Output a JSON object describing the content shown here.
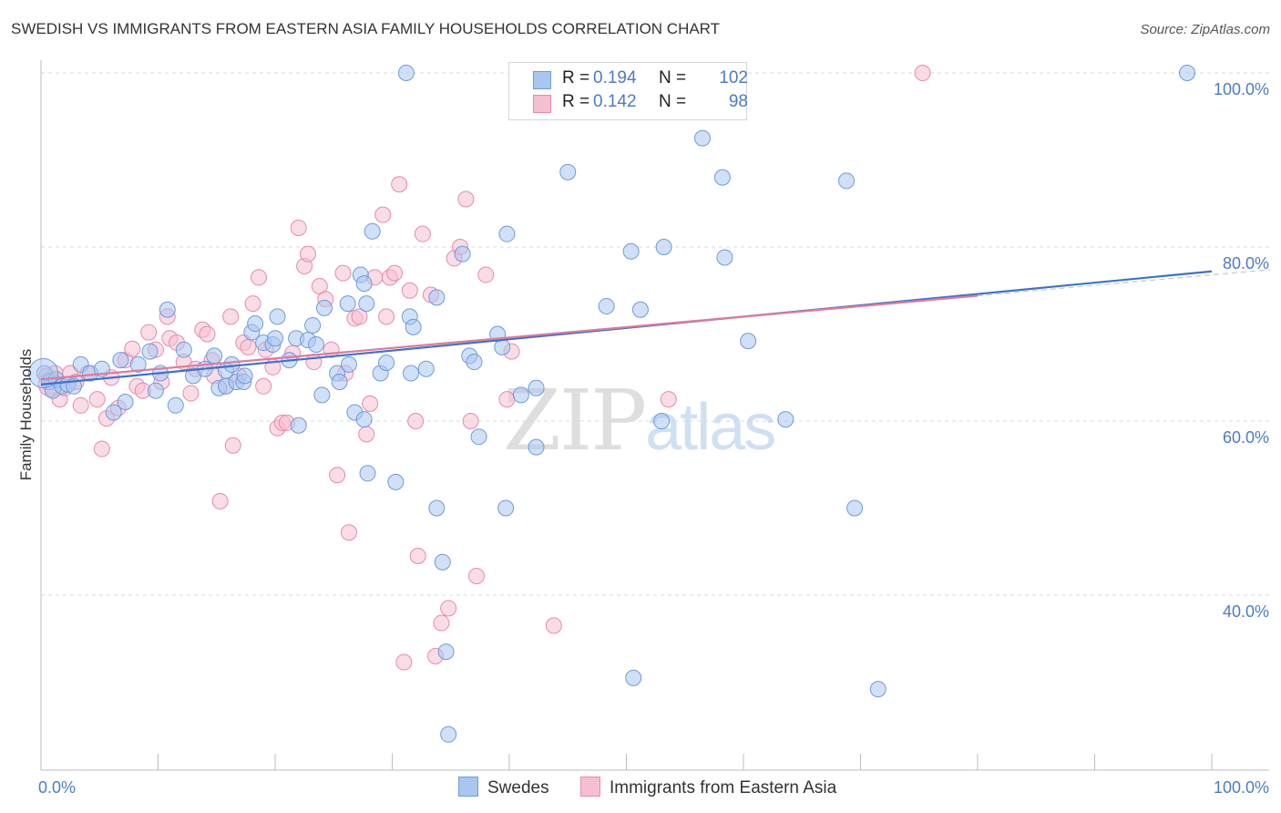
{
  "title": "SWEDISH VS IMMIGRANTS FROM EASTERN ASIA FAMILY HOUSEHOLDS CORRELATION CHART",
  "source": "Source: ZipAtlas.com",
  "watermark": {
    "part1": "ZIP",
    "part2": "atlas"
  },
  "legend": {
    "rows": [
      {
        "r_key": "R =",
        "r_value": "0.194",
        "n_key": "N =",
        "n_value": "102"
      },
      {
        "r_key": "R =",
        "r_value": "0.142",
        "n_key": "N =",
        "n_value": "98"
      }
    ]
  },
  "bottom_legend": {
    "swedes": "Swedes",
    "immigrants": "Immigrants from Eastern Asia"
  },
  "colors": {
    "blue_fill": "#a9c6ee",
    "blue_stroke": "#6d9be0",
    "blue_line": "#3b73cc",
    "pink_fill": "#f6bfd1",
    "pink_stroke": "#e88aa8",
    "pink_line": "#e07a9c",
    "grid": "#d9d9d9",
    "tick_text": "#4a7cc9"
  },
  "chart_data": {
    "type": "scatter",
    "title": "SWEDISH VS IMMIGRANTS FROM EASTERN ASIA FAMILY HOUSEHOLDS CORRELATION CHART",
    "xlabel": "",
    "ylabel": "Family Households",
    "xlim": [
      0,
      100
    ],
    "ylim": [
      20,
      102
    ],
    "x_tick_labels": [
      "0.0%",
      "100.0%"
    ],
    "y_ticks": [
      40,
      60,
      80,
      100
    ],
    "y_tick_labels": [
      "40.0%",
      "60.0%",
      "80.0%",
      "100.0%"
    ],
    "grid": true,
    "legend_position": "top-center",
    "series": [
      {
        "name": "Swedes",
        "R": 0.194,
        "N": 102,
        "trend": {
          "x": [
            0,
            100
          ],
          "y": [
            64.2,
            77.2
          ]
        },
        "points": [
          [
            0.3,
            65.5
          ],
          [
            0.7,
            64.5
          ],
          [
            1,
            63.5
          ],
          [
            1.3,
            64.8
          ],
          [
            1.8,
            64
          ],
          [
            2.3,
            64.2
          ],
          [
            2.8,
            64
          ],
          [
            3.4,
            66.5
          ],
          [
            4.2,
            65.5
          ],
          [
            5.2,
            66
          ],
          [
            6.2,
            61
          ],
          [
            6.8,
            67
          ],
          [
            7.2,
            62.2
          ],
          [
            8.3,
            66.5
          ],
          [
            9.3,
            68
          ],
          [
            9.8,
            63.5
          ],
          [
            10.2,
            65.5
          ],
          [
            10.8,
            72.8
          ],
          [
            11.5,
            61.8
          ],
          [
            12.2,
            68.2
          ],
          [
            13,
            65.2
          ],
          [
            14,
            66
          ],
          [
            14.8,
            67.5
          ],
          [
            15.2,
            63.8
          ],
          [
            15.8,
            64
          ],
          [
            15.8,
            65.8
          ],
          [
            16.3,
            66.5
          ],
          [
            16.7,
            64.5
          ],
          [
            17.3,
            64.5
          ],
          [
            17.4,
            65.2
          ],
          [
            18,
            70.2
          ],
          [
            18.3,
            71.2
          ],
          [
            19,
            69
          ],
          [
            19.8,
            68.8
          ],
          [
            20,
            69.5
          ],
          [
            20.2,
            72
          ],
          [
            21.2,
            67
          ],
          [
            21.8,
            69.5
          ],
          [
            22,
            59.5
          ],
          [
            22.8,
            69.3
          ],
          [
            23.2,
            71
          ],
          [
            23.5,
            68.8
          ],
          [
            24,
            63
          ],
          [
            24.2,
            73
          ],
          [
            25.3,
            65.5
          ],
          [
            25.5,
            64.5
          ],
          [
            26.2,
            73.5
          ],
          [
            26.3,
            66.5
          ],
          [
            26.8,
            61
          ],
          [
            27.3,
            76.8
          ],
          [
            27.6,
            75.8
          ],
          [
            27.8,
            73.5
          ],
          [
            27.6,
            60.2
          ],
          [
            27.9,
            54
          ],
          [
            28.3,
            81.8
          ],
          [
            29,
            65.5
          ],
          [
            29.5,
            66.7
          ],
          [
            30.3,
            53
          ],
          [
            31.5,
            72
          ],
          [
            31.6,
            65.5
          ],
          [
            31.8,
            70.8
          ],
          [
            31.2,
            100
          ],
          [
            32.9,
            66
          ],
          [
            33.8,
            50
          ],
          [
            33.8,
            74.2
          ],
          [
            34.3,
            43.8
          ],
          [
            34.6,
            33.5
          ],
          [
            34.8,
            24
          ],
          [
            36,
            79.2
          ],
          [
            36.6,
            67.5
          ],
          [
            37,
            66.8
          ],
          [
            37.4,
            58.2
          ],
          [
            39,
            70
          ],
          [
            39.4,
            68.5
          ],
          [
            39.7,
            50
          ],
          [
            39.8,
            81.5
          ],
          [
            41,
            63
          ],
          [
            42.3,
            57
          ],
          [
            42.3,
            63.8
          ],
          [
            43.5,
            100
          ],
          [
            45,
            88.6
          ],
          [
            48.3,
            73.2
          ],
          [
            50.4,
            79.5
          ],
          [
            50.6,
            30.5
          ],
          [
            51.2,
            72.8
          ],
          [
            53,
            60
          ],
          [
            53.2,
            80
          ],
          [
            56.5,
            92.5
          ],
          [
            58.2,
            88
          ],
          [
            58.4,
            78.8
          ],
          [
            60.4,
            69.2
          ],
          [
            63.6,
            60.2
          ],
          [
            68.8,
            87.6
          ],
          [
            69.5,
            50
          ],
          [
            71.5,
            29.2
          ],
          [
            97.9,
            100
          ]
        ]
      },
      {
        "name": "Immigrants from Eastern Asia",
        "R": 0.142,
        "N": 98,
        "trend": {
          "x": [
            0,
            80
          ],
          "y": [
            64.8,
            74.4
          ]
        },
        "points": [
          [
            0.5,
            65.2
          ],
          [
            0.8,
            64
          ],
          [
            1.2,
            65.5
          ],
          [
            1.6,
            62.5
          ],
          [
            2,
            63.8
          ],
          [
            2.5,
            65.5
          ],
          [
            3,
            64.5
          ],
          [
            3.4,
            61.8
          ],
          [
            4,
            65.5
          ],
          [
            4.8,
            62.5
          ],
          [
            5.2,
            56.8
          ],
          [
            5.6,
            60.3
          ],
          [
            6,
            65
          ],
          [
            6.6,
            61.5
          ],
          [
            7.2,
            67
          ],
          [
            7.8,
            68.3
          ],
          [
            8.2,
            64
          ],
          [
            8.7,
            63.5
          ],
          [
            9.2,
            70.2
          ],
          [
            9.8,
            68.2
          ],
          [
            10.3,
            64.5
          ],
          [
            10.8,
            72
          ],
          [
            11,
            69.5
          ],
          [
            11.6,
            69
          ],
          [
            12.2,
            66.8
          ],
          [
            12.8,
            63.2
          ],
          [
            13.2,
            66
          ],
          [
            13.8,
            70.5
          ],
          [
            14.2,
            70
          ],
          [
            14.6,
            67
          ],
          [
            14.8,
            65.2
          ],
          [
            15.3,
            50.8
          ],
          [
            15.8,
            64
          ],
          [
            16.2,
            72
          ],
          [
            16.4,
            57.2
          ],
          [
            16.9,
            65.2
          ],
          [
            17.3,
            69
          ],
          [
            17.7,
            68.5
          ],
          [
            18.1,
            73.5
          ],
          [
            18.6,
            76.5
          ],
          [
            19,
            64
          ],
          [
            19.2,
            68.2
          ],
          [
            19.8,
            66.2
          ],
          [
            20.2,
            59.2
          ],
          [
            20.6,
            59.8
          ],
          [
            21,
            59.8
          ],
          [
            21.5,
            67.8
          ],
          [
            22,
            82.2
          ],
          [
            22.5,
            77.8
          ],
          [
            22.8,
            79.2
          ],
          [
            23.3,
            66.8
          ],
          [
            23.8,
            75.5
          ],
          [
            24.3,
            74
          ],
          [
            24.8,
            68.2
          ],
          [
            25.3,
            53.8
          ],
          [
            25.8,
            77
          ],
          [
            26,
            65.5
          ],
          [
            26.3,
            47.2
          ],
          [
            26.8,
            71.8
          ],
          [
            27.2,
            72
          ],
          [
            27.8,
            58.5
          ],
          [
            28.1,
            62
          ],
          [
            28.5,
            76.5
          ],
          [
            29.2,
            83.7
          ],
          [
            29.5,
            72
          ],
          [
            29.8,
            76.5
          ],
          [
            30.2,
            77
          ],
          [
            30.6,
            87.2
          ],
          [
            31,
            32.3
          ],
          [
            31.5,
            75
          ],
          [
            32,
            60
          ],
          [
            32.2,
            44.5
          ],
          [
            32.6,
            81.5
          ],
          [
            33.3,
            74.5
          ],
          [
            33.7,
            33
          ],
          [
            34.2,
            36.8
          ],
          [
            34.8,
            38.5
          ],
          [
            35.3,
            78.7
          ],
          [
            35.8,
            80
          ],
          [
            36.3,
            85.5
          ],
          [
            36.7,
            60
          ],
          [
            37.2,
            42.2
          ],
          [
            38,
            76.8
          ],
          [
            39.8,
            62.5
          ],
          [
            40.2,
            68
          ],
          [
            43.8,
            36.5
          ],
          [
            53.6,
            62.5
          ],
          [
            54.5,
            100
          ],
          [
            55.5,
            100
          ],
          [
            75.3,
            100
          ]
        ]
      }
    ]
  }
}
